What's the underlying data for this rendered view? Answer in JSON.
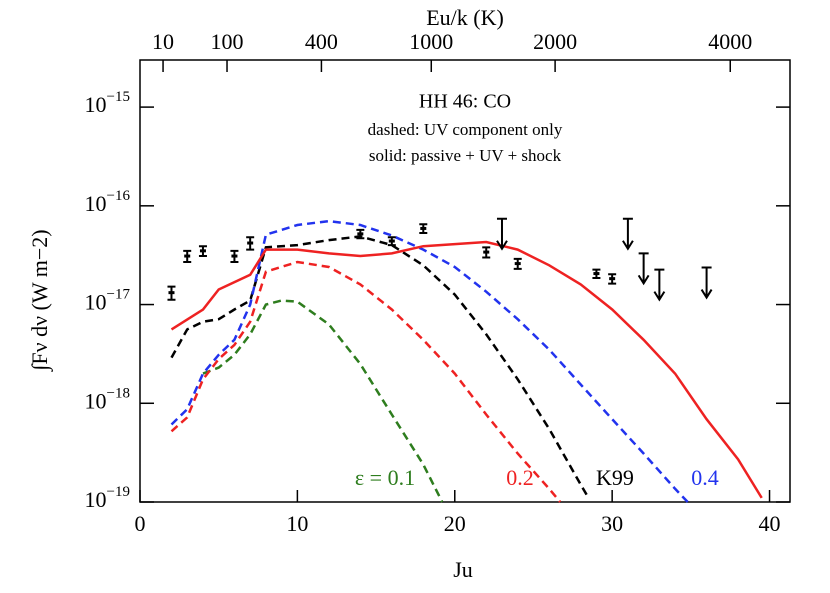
{
  "chart_data": {
    "type": "line",
    "ylog": true,
    "xlabel": "Ju",
    "ylabel": "∫Fν dν (W m−2)",
    "x2label": "Eu/k (K)",
    "xlim": [
      0,
      41.3
    ],
    "ylim": [
      1e-19,
      3e-15
    ],
    "xticks": [
      0,
      10,
      20,
      30,
      40
    ],
    "x2ticks": [
      10,
      100,
      400,
      1000,
      2000,
      4000
    ],
    "yticks": [
      {
        "value": 1e-19,
        "label": "10−19"
      },
      {
        "value": 1e-18,
        "label": "10−18"
      },
      {
        "value": 1e-17,
        "label": "10−17"
      },
      {
        "value": 1e-16,
        "label": "10−16"
      },
      {
        "value": 1e-15,
        "label": "10−15"
      }
    ],
    "annotations": [
      "HH 46: CO",
      "dashed: UV component only",
      "solid: passive + UV + shock"
    ],
    "series": [
      {
        "name": "ε = 0.1",
        "color": "#2e7d1e",
        "dashed": true,
        "x": [
          4,
          5,
          6,
          7,
          8,
          9,
          10,
          12,
          14,
          16,
          18,
          19.2
        ],
        "values": [
          2e-18,
          2.3e-18,
          3.1e-18,
          5e-18,
          1e-17,
          1.1e-17,
          1.07e-17,
          6.3e-18,
          2.5e-18,
          7.7e-19,
          2.4e-19,
          1e-19
        ]
      },
      {
        "name": "0.2",
        "color": "#ee2222",
        "dashed": true,
        "x": [
          2,
          3,
          4,
          5,
          6,
          7,
          8,
          10,
          12,
          14,
          16,
          18,
          20,
          22,
          24,
          26,
          26.7
        ],
        "values": [
          5.2e-19,
          7.2e-19,
          1.75e-18,
          2.8e-18,
          3.9e-18,
          6.7e-18,
          2.15e-17,
          2.7e-17,
          2.4e-17,
          1.6e-17,
          8.9e-18,
          4.4e-18,
          2e-18,
          7.7e-19,
          3.1e-19,
          1.36e-19,
          1e-19
        ]
      },
      {
        "name": "K99",
        "color": "#000000",
        "dashed": true,
        "x": [
          2,
          3,
          4,
          5,
          6,
          7,
          8,
          10,
          12,
          14,
          16,
          18,
          20,
          22,
          24,
          26,
          28,
          28.5
        ],
        "values": [
          2.9e-18,
          5.6e-18,
          6.7e-18,
          7.1e-18,
          8.9e-18,
          1.1e-17,
          3.8e-17,
          4e-17,
          4.5e-17,
          4.9e-17,
          4e-17,
          2.5e-17,
          1.26e-17,
          5e-18,
          1.75e-18,
          5.5e-19,
          1.5e-19,
          1.1e-19
        ]
      },
      {
        "name": "0.4",
        "color": "#2233ee",
        "dashed": true,
        "x": [
          2,
          3,
          4,
          5,
          6,
          7,
          8,
          10,
          12,
          14,
          16,
          18,
          20,
          22,
          24,
          26,
          28,
          30,
          32,
          34,
          34.8
        ],
        "values": [
          6.1e-19,
          8.7e-19,
          2e-18,
          3.1e-18,
          4.4e-18,
          1e-17,
          5.1e-17,
          6.4e-17,
          7e-17,
          6.4e-17,
          5e-17,
          3.6e-17,
          2.4e-17,
          1.35e-17,
          7.1e-18,
          3.5e-18,
          1.55e-18,
          6.9e-19,
          3.1e-19,
          1.36e-19,
          1e-19
        ]
      },
      {
        "color": "#ee2222",
        "dashed": false,
        "x": [
          2,
          4,
          5,
          7,
          8,
          10,
          12,
          14,
          16,
          18,
          20,
          22,
          24,
          26,
          28,
          30,
          32,
          34,
          36,
          38,
          39.5
        ],
        "values": [
          5.6e-18,
          8.9e-18,
          1.42e-17,
          2e-17,
          3.6e-17,
          3.6e-17,
          3.3e-17,
          3.1e-17,
          3.3e-17,
          3.9e-17,
          4.1e-17,
          4.3e-17,
          3.6e-17,
          2.5e-17,
          1.6e-17,
          8.9e-18,
          4.4e-18,
          2e-18,
          6.9e-19,
          2.7e-19,
          1.1e-19
        ]
      }
    ],
    "points": {
      "x": [
        2,
        3,
        4,
        6,
        7,
        14,
        16,
        18,
        22,
        24,
        29,
        30
      ],
      "values": [
        1.32e-17,
        3.1e-17,
        3.5e-17,
        3.1e-17,
        4.2e-17,
        5.2e-17,
        4.4e-17,
        5.9e-17,
        3.4e-17,
        2.6e-17,
        2.06e-17,
        1.83e-17
      ],
      "errors": [
        2e-18,
        4e-18,
        4e-18,
        4e-18,
        6e-18,
        5e-18,
        4e-18,
        6e-18,
        4e-18,
        3e-18,
        2e-18,
        2e-18
      ]
    },
    "upper_limits": {
      "x": [
        23,
        31,
        32,
        33,
        36
      ],
      "values": [
        7.4e-17,
        7.4e-17,
        3.3e-17,
        2.26e-17,
        2.37e-17
      ]
    }
  }
}
